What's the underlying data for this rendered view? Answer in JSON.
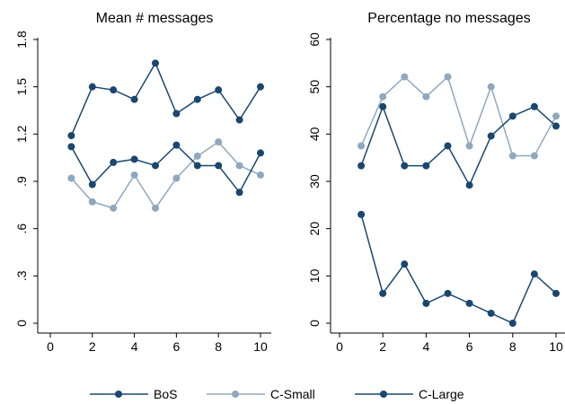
{
  "chart_data": [
    {
      "type": "line",
      "title": "Mean # messages",
      "xlabel": "",
      "ylabel": "",
      "x": [
        1,
        2,
        3,
        4,
        5,
        6,
        7,
        8,
        9,
        10
      ],
      "xticks": [
        0,
        2,
        4,
        6,
        8,
        10
      ],
      "xtick_labels": [
        "0",
        "2",
        "4",
        "6",
        "8",
        "10"
      ],
      "xlim": [
        0,
        10.5
      ],
      "yticks": [
        0,
        0.3,
        0.6,
        0.9,
        1.2,
        1.5,
        1.8
      ],
      "ytick_labels": [
        "0",
        ".3",
        ".6",
        ".9",
        "1.2",
        "1.5",
        "1.8"
      ],
      "ylim": [
        0,
        1.8
      ],
      "grid": false,
      "series": [
        {
          "name": "BoS",
          "values": [
            1.19,
            1.5,
            1.48,
            1.42,
            1.65,
            1.33,
            1.42,
            1.48,
            1.29,
            1.5
          ]
        },
        {
          "name": "C-Small",
          "values": [
            0.92,
            0.77,
            0.73,
            0.94,
            0.73,
            0.92,
            1.06,
            1.15,
            1.0,
            0.94
          ]
        },
        {
          "name": "C-Large",
          "values": [
            1.12,
            0.88,
            1.02,
            1.04,
            1.0,
            1.13,
            1.0,
            1.0,
            0.83,
            1.08
          ]
        }
      ]
    },
    {
      "type": "line",
      "title": "Percentage no messages",
      "xlabel": "",
      "ylabel": "",
      "x": [
        1,
        2,
        3,
        4,
        5,
        6,
        7,
        8,
        9,
        10
      ],
      "xticks": [
        0,
        2,
        4,
        6,
        8,
        10
      ],
      "xtick_labels": [
        "0",
        "2",
        "4",
        "6",
        "8",
        "10"
      ],
      "xlim": [
        0,
        10.5
      ],
      "yticks": [
        0,
        10,
        20,
        30,
        40,
        50,
        60
      ],
      "ytick_labels": [
        "0",
        "10",
        "20",
        "30",
        "40",
        "50",
        "60"
      ],
      "ylim": [
        0,
        60
      ],
      "grid": false,
      "series": [
        {
          "name": "BoS",
          "values": [
            23.0,
            6.3,
            12.5,
            4.2,
            6.3,
            4.2,
            2.1,
            0.0,
            10.4,
            6.3
          ]
        },
        {
          "name": "C-Small",
          "values": [
            37.5,
            47.9,
            52.1,
            47.9,
            52.1,
            37.5,
            50.0,
            35.4,
            35.4,
            43.8
          ]
        },
        {
          "name": "C-Large",
          "values": [
            33.3,
            45.8,
            33.3,
            33.3,
            37.5,
            29.2,
            39.6,
            43.8,
            45.8,
            41.7
          ]
        }
      ]
    }
  ],
  "legend": {
    "placement": "bottom",
    "items": [
      {
        "label": "BoS",
        "color": "#1a476f"
      },
      {
        "label": "C-Small",
        "color": "#90a8bd"
      },
      {
        "label": "C-Large",
        "color": "#1a476f"
      }
    ]
  },
  "colors": {
    "BoS": "#1a476f",
    "C-Small": "#90a8bd",
    "C-Large": "#1a476f"
  }
}
